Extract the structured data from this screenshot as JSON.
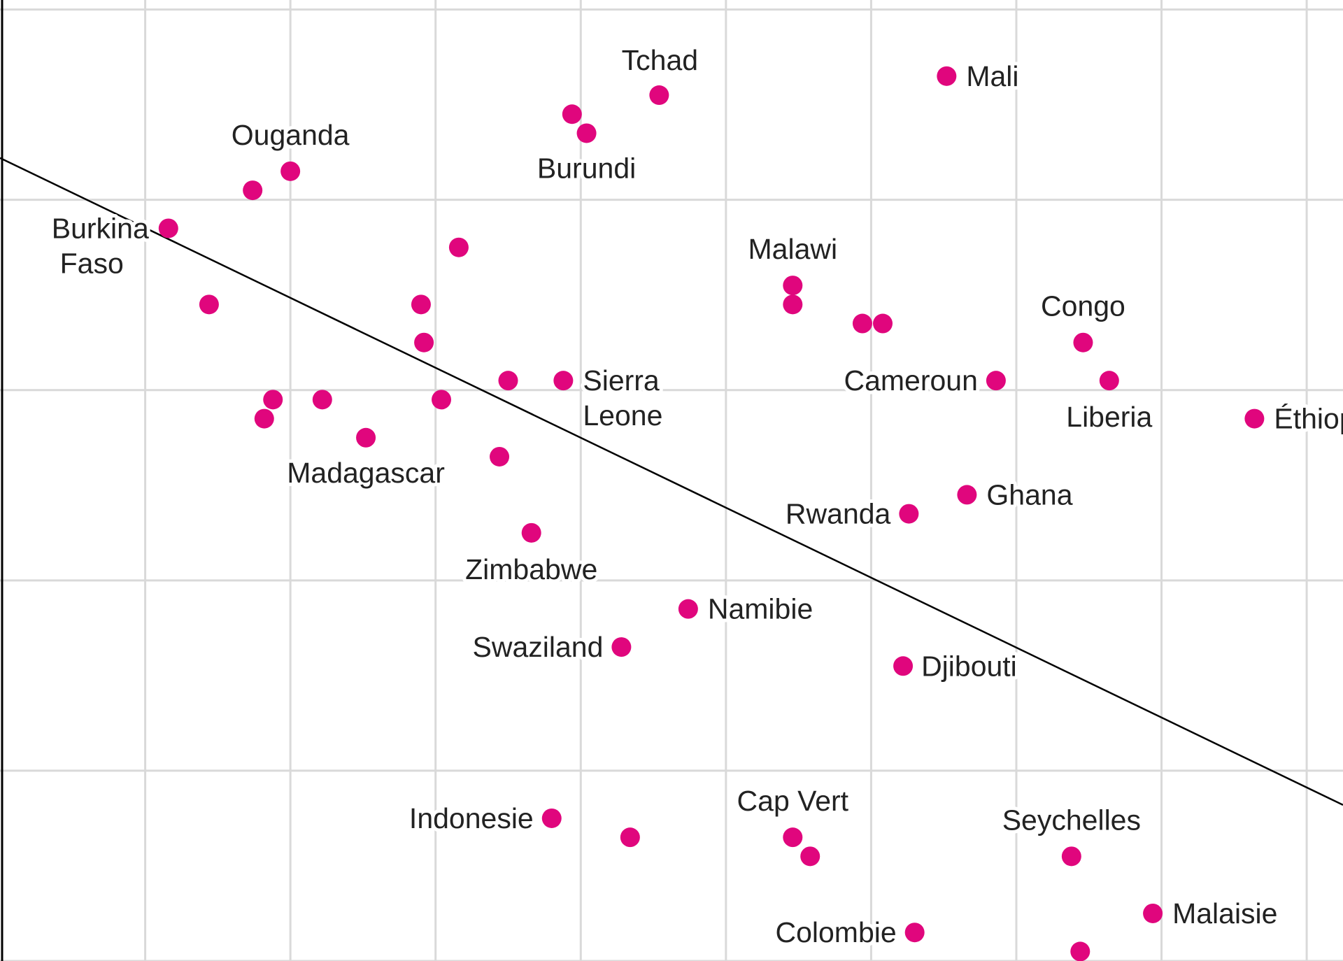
{
  "chart_data": {
    "type": "scatter",
    "title": "",
    "xlabel": "",
    "ylabel": "",
    "grid": true,
    "xlim": [
      0,
      9.25
    ],
    "ylim": [
      0,
      5.05
    ],
    "colors": {
      "point": "#e0067d",
      "trend": "#000000",
      "grid": "#d9d9d9"
    },
    "trendline": {
      "x": [
        0,
        9.25
      ],
      "y": [
        4.22,
        0.82
      ]
    },
    "points": [
      {
        "name": "Tchad",
        "x": 4.54,
        "y": 4.55
      },
      {
        "name": "Mali",
        "x": 6.52,
        "y": 4.65
      },
      {
        "name": "",
        "x": 3.94,
        "y": 4.45
      },
      {
        "name": "Burundi",
        "x": 4.04,
        "y": 4.35
      },
      {
        "name": "Ouganda",
        "x": 2.0,
        "y": 4.15
      },
      {
        "name": "",
        "x": 1.74,
        "y": 4.05
      },
      {
        "name": "Burkina Faso",
        "x": 1.16,
        "y": 3.85
      },
      {
        "name": "",
        "x": 3.16,
        "y": 3.75
      },
      {
        "name": "",
        "x": 1.44,
        "y": 3.45
      },
      {
        "name": "",
        "x": 2.9,
        "y": 3.45
      },
      {
        "name": "Malawi",
        "x": 5.46,
        "y": 3.55
      },
      {
        "name": "",
        "x": 5.46,
        "y": 3.45
      },
      {
        "name": "",
        "x": 5.94,
        "y": 3.35
      },
      {
        "name": "",
        "x": 6.08,
        "y": 3.35
      },
      {
        "name": "",
        "x": 2.92,
        "y": 3.25
      },
      {
        "name": "Congo",
        "x": 7.46,
        "y": 3.25
      },
      {
        "name": "",
        "x": 3.5,
        "y": 3.05
      },
      {
        "name": "Sierra Leone",
        "x": 3.88,
        "y": 3.05
      },
      {
        "name": "Cameroun",
        "x": 6.86,
        "y": 3.05
      },
      {
        "name": "Liberia",
        "x": 7.64,
        "y": 3.05
      },
      {
        "name": "",
        "x": 1.88,
        "y": 2.95
      },
      {
        "name": "",
        "x": 2.22,
        "y": 2.95
      },
      {
        "name": "",
        "x": 3.04,
        "y": 2.95
      },
      {
        "name": "",
        "x": 1.82,
        "y": 2.85
      },
      {
        "name": "Éthiopie",
        "x": 8.64,
        "y": 2.85
      },
      {
        "name": "Madagascar",
        "x": 2.52,
        "y": 2.75
      },
      {
        "name": "",
        "x": 3.44,
        "y": 2.65
      },
      {
        "name": "Ghana",
        "x": 6.66,
        "y": 2.45
      },
      {
        "name": "Rwanda",
        "x": 6.26,
        "y": 2.35
      },
      {
        "name": "Zimbabwe",
        "x": 3.66,
        "y": 2.25
      },
      {
        "name": "Namibie",
        "x": 4.74,
        "y": 1.85
      },
      {
        "name": "Swaziland",
        "x": 4.28,
        "y": 1.65
      },
      {
        "name": "Djibouti",
        "x": 6.22,
        "y": 1.55
      },
      {
        "name": "Indonesie",
        "x": 3.8,
        "y": 0.75
      },
      {
        "name": "",
        "x": 4.34,
        "y": 0.65
      },
      {
        "name": "Cap Vert",
        "x": 5.46,
        "y": 0.65
      },
      {
        "name": "",
        "x": 5.58,
        "y": 0.55
      },
      {
        "name": "Seychelles",
        "x": 7.38,
        "y": 0.55
      },
      {
        "name": "Malaisie",
        "x": 7.94,
        "y": 0.25
      },
      {
        "name": "Colombie",
        "x": 6.3,
        "y": 0.15
      },
      {
        "name": "",
        "x": 7.44,
        "y": 0.05
      }
    ]
  }
}
